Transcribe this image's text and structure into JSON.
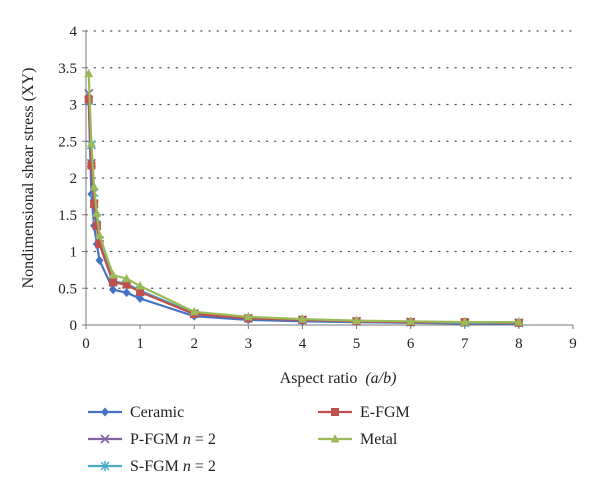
{
  "chart_data": {
    "type": "line",
    "title": "",
    "xlabel": "Aspect ratio",
    "xlabel_var": "(a/b)",
    "ylabel": "Nondimensional shear stress (XY)",
    "xlim": [
      0,
      9
    ],
    "ylim": [
      0,
      4
    ],
    "xticks": [
      0,
      1,
      2,
      3,
      4,
      5,
      6,
      7,
      8,
      9
    ],
    "yticks": [
      0,
      0.5,
      1,
      1.5,
      2,
      2.5,
      3,
      3.5,
      4
    ],
    "ytick_labels": [
      "0",
      "0.5",
      "1",
      "1.5",
      "2",
      "2.5",
      "3",
      "3.5",
      "4"
    ],
    "grid": "horizontal-dotted",
    "legend_position": "bottom",
    "series": [
      {
        "name": "Ceramic",
        "name_parts": [
          "Ceramic"
        ],
        "color": "#4472C4",
        "marker": "diamond",
        "x": [
          0.05,
          0.1,
          0.15,
          0.2,
          0.25,
          0.5,
          0.75,
          1,
          2,
          3,
          4,
          5,
          6,
          7,
          8
        ],
        "y": [
          3.05,
          1.78,
          1.35,
          1.1,
          0.88,
          0.48,
          0.44,
          0.36,
          0.12,
          0.07,
          0.05,
          0.04,
          0.03,
          0.02,
          0.02
        ]
      },
      {
        "name": "P-FGM n = 2",
        "name_parts": [
          "P-FGM ",
          "n",
          " = 2"
        ],
        "color": "#8064A2",
        "marker": "x",
        "x": [
          0.05,
          0.1,
          0.15,
          0.2,
          0.25,
          0.5,
          0.75,
          1,
          2,
          3,
          4,
          5,
          6,
          7,
          8
        ],
        "y": [
          3.15,
          2.2,
          1.65,
          1.35,
          1.1,
          0.58,
          0.55,
          0.45,
          0.15,
          0.09,
          0.07,
          0.05,
          0.04,
          0.03,
          0.03
        ]
      },
      {
        "name": "S-FGM n = 2",
        "name_parts": [
          "S-FGM ",
          "n",
          " = 2"
        ],
        "color": "#4BACC6",
        "marker": "star",
        "x": [
          0.05,
          0.1,
          0.15,
          0.2,
          0.25,
          0.5,
          0.75,
          1,
          2,
          3,
          4,
          5,
          6,
          7,
          8
        ],
        "y": [
          3.05,
          2.45,
          1.8,
          1.45,
          1.15,
          0.6,
          0.56,
          0.47,
          0.16,
          0.09,
          0.07,
          0.05,
          0.04,
          0.03,
          0.03
        ]
      },
      {
        "name": "E-FGM",
        "name_parts": [
          "E-FGM"
        ],
        "color": "#C0504D",
        "marker": "square",
        "x": [
          0.05,
          0.1,
          0.15,
          0.2,
          0.25,
          0.5,
          0.75,
          1,
          2,
          3,
          4,
          5,
          6,
          7,
          8
        ],
        "y": [
          3.07,
          2.17,
          1.65,
          1.35,
          1.1,
          0.58,
          0.55,
          0.45,
          0.15,
          0.09,
          0.07,
          0.05,
          0.04,
          0.04,
          0.03
        ]
      },
      {
        "name": "Metal",
        "name_parts": [
          "Metal"
        ],
        "color": "#9BBB59",
        "marker": "triangle",
        "x": [
          0.05,
          0.1,
          0.15,
          0.2,
          0.25,
          0.5,
          0.75,
          1,
          2,
          3,
          4,
          5,
          6,
          7,
          8
        ],
        "y": [
          3.42,
          2.47,
          1.88,
          1.52,
          1.22,
          0.68,
          0.63,
          0.53,
          0.18,
          0.11,
          0.08,
          0.06,
          0.05,
          0.04,
          0.04
        ]
      }
    ]
  }
}
